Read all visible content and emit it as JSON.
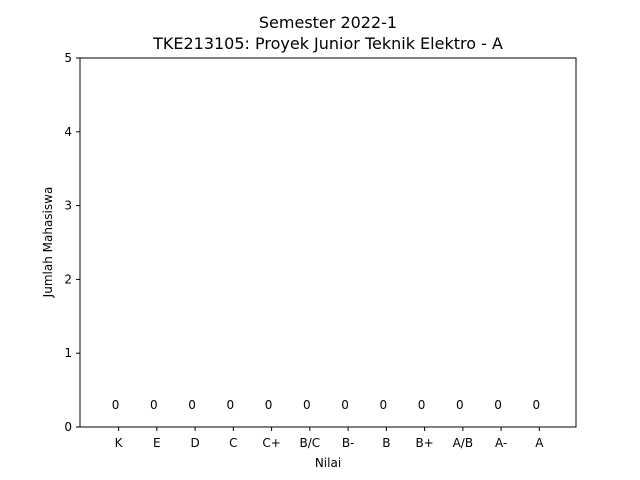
{
  "chart_data": {
    "type": "bar",
    "title": "Semester 2022-1",
    "subtitle": "TKE213105: Proyek Junior Teknik Elektro - A",
    "xlabel": "Nilai",
    "ylabel": "Jumlah Mahasiswa",
    "categories": [
      "K",
      "E",
      "D",
      "C",
      "C+",
      "B/C",
      "B-",
      "B",
      "B+",
      "A/B",
      "A-",
      "A"
    ],
    "values": [
      0,
      0,
      0,
      0,
      0,
      0,
      0,
      0,
      0,
      0,
      0,
      0
    ],
    "data_labels": [
      "0",
      "0",
      "0",
      "0",
      "0",
      "0",
      "0",
      "0",
      "0",
      "0",
      "0",
      "0"
    ],
    "ylim": [
      0,
      5
    ],
    "yticks": [
      0,
      1,
      2,
      3,
      4,
      5
    ],
    "grid": false,
    "bar_color": "#1f77b4"
  }
}
